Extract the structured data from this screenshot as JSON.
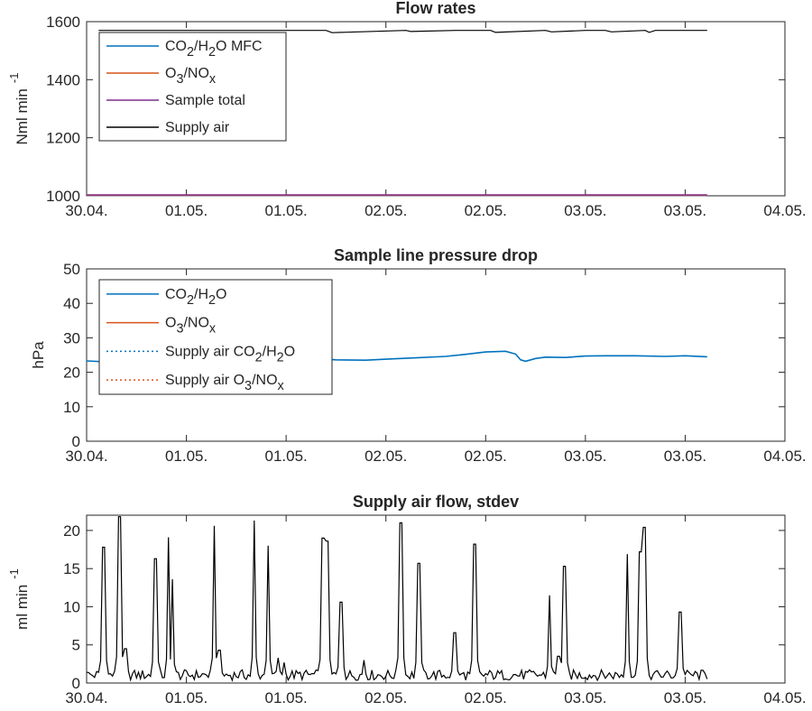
{
  "chart_data": [
    {
      "type": "line",
      "title": "Flow rates",
      "ylabel": "Nml min",
      "ylabel_exp": "-1",
      "xlim": [
        0,
        7
      ],
      "ylim": [
        1000,
        1600
      ],
      "x_ticks": [
        0,
        1,
        2,
        3,
        4,
        5,
        6,
        7
      ],
      "x_tick_labels": [
        "30.04.",
        "01.05.",
        "01.05.",
        "02.05.",
        "02.05.",
        "03.05.",
        "03.05.",
        "04.05."
      ],
      "y_ticks": [
        1000,
        1200,
        1400,
        1600
      ],
      "legend_position": "top-left",
      "series": [
        {
          "name": "CO2/H2O MFC",
          "color": "#0072bd",
          "style": "solid",
          "x": [
            0,
            6.22
          ],
          "y": [
            1001,
            1001
          ]
        },
        {
          "name": "O3/NOx",
          "color": "#d95319",
          "style": "solid",
          "x": [
            0,
            6.22
          ],
          "y": [
            1002,
            1002
          ]
        },
        {
          "name": "Sample total",
          "color": "#7e2f8e",
          "style": "solid",
          "x": [
            0,
            6.22
          ],
          "y": [
            1003,
            1003
          ]
        },
        {
          "name": "Supply air",
          "color": "#000000",
          "style": "solid",
          "x": [
            0.12,
            0.6,
            1.6,
            2.4,
            2.46,
            3.2,
            3.25,
            3.7,
            4.05,
            4.1,
            4.6,
            4.66,
            5.0,
            5.2,
            5.26,
            5.6,
            5.64,
            5.7,
            5.9,
            6.22
          ],
          "y": [
            1570,
            1570,
            1570,
            1570,
            1562,
            1570,
            1566,
            1570,
            1570,
            1563,
            1570,
            1565,
            1570,
            1570,
            1565,
            1570,
            1563,
            1570,
            1570,
            1570
          ]
        }
      ]
    },
    {
      "type": "line",
      "title": "Sample line pressure drop",
      "ylabel": "hPa",
      "xlim": [
        0,
        7
      ],
      "ylim": [
        0,
        50
      ],
      "x_ticks": [
        0,
        1,
        2,
        3,
        4,
        5,
        6,
        7
      ],
      "x_tick_labels": [
        "30.04.",
        "01.05.",
        "01.05.",
        "02.05.",
        "02.05.",
        "03.05.",
        "03.05.",
        "04.05."
      ],
      "y_ticks": [
        0,
        10,
        20,
        30,
        40,
        50
      ],
      "legend_position": "top-left",
      "series": [
        {
          "name": "CO2/H2O",
          "color": "#0072bd",
          "style": "solid",
          "x": [
            0,
            0.15,
            0.2,
            2.0,
            2.2,
            2.5,
            2.8,
            3.0,
            3.3,
            3.6,
            3.8,
            4.0,
            4.2,
            4.3,
            4.35,
            4.4,
            4.5,
            4.6,
            4.8,
            5.0,
            5.2,
            5.5,
            5.8,
            6.0,
            6.22
          ],
          "y": [
            23.3,
            23.1,
            23.4,
            24.8,
            24.2,
            23.6,
            23.5,
            23.8,
            24.2,
            24.6,
            25.2,
            25.9,
            26.1,
            25.3,
            23.6,
            23.2,
            24.0,
            24.4,
            24.3,
            24.7,
            24.8,
            24.8,
            24.6,
            24.8,
            24.5
          ]
        },
        {
          "name": "O3/NOx",
          "color": "#d95319",
          "style": "solid",
          "x": [],
          "y": []
        },
        {
          "name": "Supply air CO2/H2O",
          "color": "#0072bd",
          "style": "dotted",
          "x": [],
          "y": []
        },
        {
          "name": "Supply air O3/NOx",
          "color": "#d95319",
          "style": "dotted",
          "x": [],
          "y": []
        }
      ]
    },
    {
      "type": "line",
      "title": "Supply air flow, stdev",
      "ylabel": "ml min",
      "ylabel_exp": "-1",
      "xlim": [
        0,
        7
      ],
      "ylim": [
        0,
        22
      ],
      "x_ticks": [
        0,
        1,
        2,
        3,
        4,
        5,
        6,
        7
      ],
      "x_tick_labels": [
        "30.04.",
        "01.05.",
        "01.05.",
        "02.05.",
        "02.05.",
        "03.05.",
        "03.05.",
        "04.05."
      ],
      "y_ticks": [
        0,
        5,
        10,
        15,
        20
      ],
      "series": [
        {
          "name": "Supply air flow stdev",
          "color": "#000000",
          "style": "solid",
          "baseline": 1.0,
          "peaks": [
            [
              0.17,
              17.8
            ],
            [
              0.33,
              21.8
            ],
            [
              0.39,
              4.5
            ],
            [
              0.69,
              16.3
            ],
            [
              0.82,
              19.1
            ],
            [
              0.86,
              13.6
            ],
            [
              1.28,
              20.6
            ],
            [
              1.33,
              4.3
            ],
            [
              1.68,
              21.3
            ],
            [
              1.82,
              18.0
            ],
            [
              1.92,
              3.3
            ],
            [
              1.98,
              2.7
            ],
            [
              2.37,
              19.0
            ],
            [
              2.41,
              18.6
            ],
            [
              2.55,
              10.6
            ],
            [
              2.78,
              3.0
            ],
            [
              3.15,
              21.0
            ],
            [
              3.33,
              15.7
            ],
            [
              3.69,
              6.6
            ],
            [
              3.89,
              18.2
            ],
            [
              4.64,
              11.5
            ],
            [
              4.73,
              3.5
            ],
            [
              4.79,
              15.3
            ],
            [
              5.42,
              16.9
            ],
            [
              5.55,
              17.2
            ],
            [
              5.59,
              20.4
            ],
            [
              5.95,
              9.3
            ]
          ],
          "x_end": 6.22
        }
      ]
    }
  ]
}
